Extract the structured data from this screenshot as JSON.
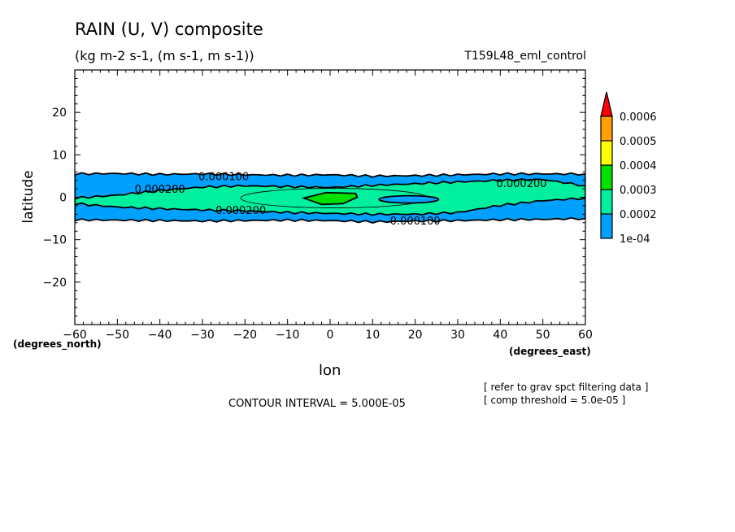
{
  "chart_data": {
    "type": "heatmap",
    "subtype": "filled-contour",
    "title": "RAIN (U, V) composite",
    "subtitle": "(kg m-2 s-1, (m s-1, m s-1))",
    "run_label": "T159L48_eml_control",
    "xlabel": "lon",
    "ylabel": "latitude",
    "x_units": "(degrees_east)",
    "y_units": "(degrees_north)",
    "xlim": [
      -60,
      60
    ],
    "ylim": [
      -30,
      30
    ],
    "x_ticks": [
      -60,
      -50,
      -40,
      -30,
      -20,
      -10,
      0,
      10,
      20,
      30,
      40,
      50,
      60
    ],
    "x_tick_labels": [
      "−60",
      "−50",
      "−40",
      "−30",
      "−20",
      "−10",
      "0",
      "10",
      "20",
      "30",
      "40",
      "50",
      "60"
    ],
    "y_ticks": [
      20,
      10,
      0,
      -10,
      -20
    ],
    "y_tick_labels": [
      "20",
      "10",
      "0",
      "−10",
      "−20"
    ],
    "contour_interval_text": "CONTOUR INTERVAL = 5.000E-05",
    "notes": [
      "[ refer to grav spct filtering data ]",
      "[ comp threshold = 5.0e-05 ]"
    ],
    "contour_labels": [
      {
        "text": "0.000100",
        "lon": -25,
        "lat": 5
      },
      {
        "text": "0.000200",
        "lon": -40,
        "lat": 2
      },
      {
        "text": "0.000200",
        "lon": 45,
        "lat": 3.4
      },
      {
        "text": "0.000200",
        "lon": -21,
        "lat": -3
      },
      {
        "text": "0.000100",
        "lon": 20,
        "lat": -5.5
      }
    ],
    "sample_lons": [
      -60,
      -50,
      -40,
      -30,
      -20,
      -10,
      0,
      10,
      20,
      30,
      40,
      50,
      60
    ],
    "bands": [
      {
        "level": 0.0001,
        "color": "#00a0ff",
        "upper": [
          5.5,
          5.6,
          5.4,
          5.5,
          5.3,
          5.2,
          5.3,
          5.0,
          5.1,
          5.3,
          5.5,
          5.5,
          5.5
        ],
        "lower": [
          -5.3,
          -5.4,
          -5.5,
          -5.6,
          -5.5,
          -5.4,
          -5.5,
          -5.8,
          -5.6,
          -5.5,
          -5.3,
          -5.2,
          -5.0
        ]
      },
      {
        "level": 0.0002,
        "color": "#00f0a0",
        "upper": [
          -0.2,
          0.5,
          1.6,
          2.4,
          2.7,
          2.5,
          2.3,
          2.8,
          3.2,
          3.6,
          4.0,
          4.2,
          2.7
        ],
        "lower": [
          -1.5,
          -2.3,
          -2.7,
          -3.0,
          -3.2,
          -3.6,
          -3.8,
          -4.0,
          -4.0,
          -3.6,
          -1.9,
          -0.8,
          -0.2
        ]
      }
    ],
    "core": {
      "level": 0.0003,
      "color": "#00e000",
      "lon_range": [
        -5,
        6
      ],
      "lat_range": [
        -1.5,
        1.1
      ]
    },
    "colorbar": {
      "levels": [
        "1e-04",
        "0.0002",
        "0.0003",
        "0.0004",
        "0.0005",
        "0.0006"
      ],
      "colors": [
        "#00a0ff",
        "#00f0a0",
        "#00e000",
        "#ffff00",
        "#ffa000"
      ],
      "over_color": "#ff0000"
    }
  }
}
